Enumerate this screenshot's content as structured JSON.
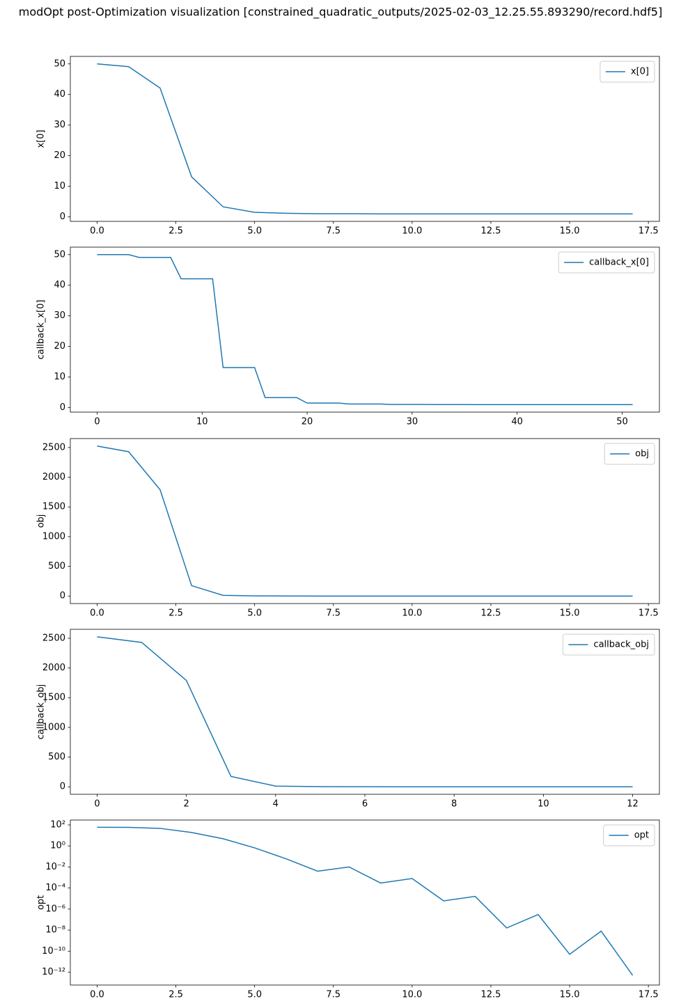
{
  "figure_title": "modOpt post-Optimization visualization [constrained_quadratic_outputs/2025-02-03_12.25.55.893290/record.hdf5]",
  "chart_data": [
    {
      "type": "line",
      "ylabel": "x[0]",
      "legend": "upper right",
      "x": [
        0,
        1,
        2,
        3,
        4,
        5,
        6,
        7,
        8,
        9,
        10,
        11,
        12,
        13,
        14,
        15,
        16,
        17
      ],
      "series": [
        {
          "name": "x[0]",
          "color": "#1f77b4",
          "values": [
            50,
            49.1,
            42.1,
            13.1,
            3.3,
            1.5,
            1.2,
            1.05,
            1.05,
            1.0,
            1.0,
            1.0,
            1.0,
            1.0,
            1.0,
            1.0,
            1.0,
            1.0
          ]
        }
      ],
      "xlim": [
        -0.85,
        17.85
      ],
      "ylim": [
        -1.45,
        52.45
      ],
      "xticks": [
        {
          "value": 0,
          "label": "0.0"
        },
        {
          "value": 2.5,
          "label": "2.5"
        },
        {
          "value": 5,
          "label": "5.0"
        },
        {
          "value": 7.5,
          "label": "7.5"
        },
        {
          "value": 10,
          "label": "10.0"
        },
        {
          "value": 12.5,
          "label": "12.5"
        },
        {
          "value": 15,
          "label": "15.0"
        },
        {
          "value": 17.5,
          "label": "17.5"
        }
      ],
      "yticks": [
        0,
        10,
        20,
        30,
        40,
        50
      ]
    },
    {
      "type": "line",
      "ylabel": "callback_x[0]",
      "legend": "upper right",
      "x": [
        0,
        1,
        2,
        3,
        4,
        5,
        6,
        7,
        8,
        9,
        10,
        11,
        12,
        13,
        14,
        15,
        16,
        17,
        18,
        19,
        20,
        21,
        22,
        23,
        24,
        25,
        26,
        27,
        28,
        29,
        30,
        31,
        32,
        33,
        34,
        35,
        36,
        37,
        38,
        39,
        40,
        41,
        42,
        43,
        44,
        45,
        46,
        47,
        48,
        49,
        50,
        51
      ],
      "series": [
        {
          "name": "callback_x[0]",
          "color": "#1f77b4",
          "values": [
            50,
            50,
            50,
            50,
            49.1,
            49.1,
            49.1,
            49.1,
            42.1,
            42.1,
            42.1,
            42.1,
            13.1,
            13.1,
            13.1,
            13.1,
            3.3,
            3.3,
            3.3,
            3.3,
            1.5,
            1.5,
            1.5,
            1.5,
            1.2,
            1.2,
            1.2,
            1.2,
            1.05,
            1.05,
            1.05,
            1.05,
            1.02,
            1.02,
            1.02,
            1.02,
            1.0,
            1.0,
            1.0,
            1.0,
            1.0,
            1.0,
            1.0,
            1.0,
            1.0,
            1.0,
            1.0,
            1.0,
            1.0,
            1.0,
            1.0,
            1.0
          ]
        }
      ],
      "xlim": [
        -2.55,
        53.55
      ],
      "ylim": [
        -1.45,
        52.45
      ],
      "xticks": [
        0,
        10,
        20,
        30,
        40,
        50
      ],
      "yticks": [
        0,
        10,
        20,
        30,
        40,
        50
      ]
    },
    {
      "type": "line",
      "ylabel": "obj",
      "legend": "upper right",
      "x": [
        0,
        1,
        2,
        3,
        4,
        5,
        6,
        7,
        8,
        9,
        10,
        11,
        12,
        13,
        14,
        15,
        16,
        17
      ],
      "series": [
        {
          "name": "obj",
          "color": "#1f77b4",
          "values": [
            2525,
            2430,
            1790,
            175,
            12,
            3,
            1,
            0.5,
            0.3,
            0.2,
            0.1,
            0.05,
            0.02,
            0.01,
            0.01,
            0,
            0,
            0
          ]
        }
      ],
      "xlim": [
        -0.85,
        17.85
      ],
      "ylim": [
        -126,
        2651
      ],
      "xticks": [
        {
          "value": 0,
          "label": "0.0"
        },
        {
          "value": 2.5,
          "label": "2.5"
        },
        {
          "value": 5,
          "label": "5.0"
        },
        {
          "value": 7.5,
          "label": "7.5"
        },
        {
          "value": 10,
          "label": "10.0"
        },
        {
          "value": 12.5,
          "label": "12.5"
        },
        {
          "value": 15,
          "label": "15.0"
        },
        {
          "value": 17.5,
          "label": "17.5"
        }
      ],
      "yticks": [
        0,
        500,
        1000,
        1500,
        2000,
        2500
      ]
    },
    {
      "type": "line",
      "ylabel": "callback_obj",
      "legend": "upper right",
      "x": [
        0,
        1,
        2,
        3,
        4,
        5,
        6,
        7,
        8,
        9,
        10,
        11,
        12
      ],
      "series": [
        {
          "name": "callback_obj",
          "color": "#1f77b4",
          "values": [
            2525,
            2430,
            1790,
            175,
            12,
            3,
            1,
            0.5,
            0.3,
            0.2,
            0.1,
            0.05,
            0.02
          ]
        }
      ],
      "xlim": [
        -0.6,
        12.6
      ],
      "ylim": [
        -126,
        2651
      ],
      "xticks": [
        0,
        2,
        4,
        6,
        8,
        10,
        12
      ],
      "yticks": [
        0,
        500,
        1000,
        1500,
        2000,
        2500
      ]
    },
    {
      "type": "line",
      "ylabel": "opt",
      "legend": "upper right",
      "yscale": "log",
      "x": [
        0,
        1,
        2,
        3,
        4,
        5,
        6,
        7,
        8,
        9,
        10,
        11,
        12,
        13,
        14,
        15,
        16,
        17
      ],
      "series": [
        {
          "name": "opt",
          "color": "#1f77b4",
          "values": [
            60,
            58,
            47,
            19,
            4.8,
            0.66,
            0.06,
            0.004,
            0.01,
            0.0003,
            0.0008,
            6e-06,
            1.6e-05,
            1.6e-08,
            3e-07,
            5e-11,
            8e-09,
            5e-13
          ]
        }
      ],
      "xlim": [
        -0.85,
        17.85
      ],
      "ylim": [
        6e-14,
        290
      ],
      "xticks": [
        {
          "value": 0,
          "label": "0.0"
        },
        {
          "value": 2.5,
          "label": "2.5"
        },
        {
          "value": 5,
          "label": "5.0"
        },
        {
          "value": 7.5,
          "label": "7.5"
        },
        {
          "value": 10,
          "label": "10.0"
        },
        {
          "value": 12.5,
          "label": "12.5"
        },
        {
          "value": 15,
          "label": "15.0"
        },
        {
          "value": 17.5,
          "label": "17.5"
        }
      ],
      "yticks": [
        {
          "value": 100,
          "label": "10²"
        },
        {
          "value": 1,
          "label": "10⁰"
        },
        {
          "value": 0.01,
          "label": "10⁻²"
        },
        {
          "value": 0.0001,
          "label": "10⁻⁴"
        },
        {
          "value": 1e-06,
          "label": "10⁻⁶"
        },
        {
          "value": 1e-08,
          "label": "10⁻⁸"
        },
        {
          "value": 1e-10,
          "label": "10⁻¹⁰"
        },
        {
          "value": 1e-12,
          "label": "10⁻¹²"
        }
      ]
    }
  ]
}
